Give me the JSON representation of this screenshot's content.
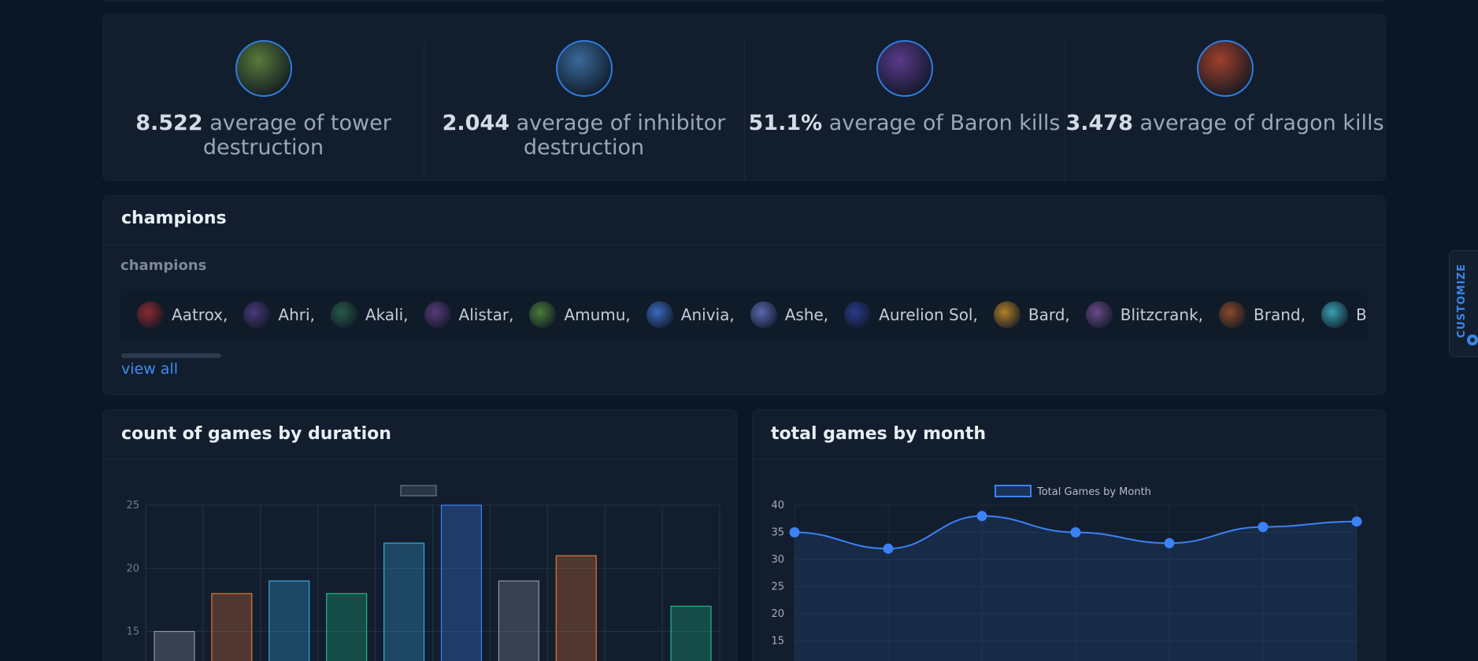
{
  "stats": [
    {
      "value": "8.522",
      "label": "average of tower destruction",
      "icon": "tower-icon",
      "color": "#5a7a3a"
    },
    {
      "value": "2.044",
      "label": "average of inhibitor destruction",
      "icon": "inhibitor-icon",
      "color": "#3a6a9a"
    },
    {
      "value": "51.1%",
      "label": "average of Baron kills",
      "icon": "baron-icon",
      "color": "#5a3a8a"
    },
    {
      "value": "3.478",
      "label": "average of dragon kills",
      "icon": "dragon-icon",
      "color": "#a0402a"
    }
  ],
  "champions": {
    "title": "champions",
    "column_label": "champions",
    "view_all": "view all",
    "items": [
      {
        "label": "Aatrox,",
        "color": "#8a2a32"
      },
      {
        "label": "Ahri,",
        "color": "#4a3a7a"
      },
      {
        "label": "Akali,",
        "color": "#2a5a4a"
      },
      {
        "label": "Alistar,",
        "color": "#5a3a7a"
      },
      {
        "label": "Amumu,",
        "color": "#4a7a3a"
      },
      {
        "label": "Anivia,",
        "color": "#3a6ac0"
      },
      {
        "label": "Ashe,",
        "color": "#5a6ab0"
      },
      {
        "label": "Aurelion Sol,",
        "color": "#2a3a8a"
      },
      {
        "label": "Bard,",
        "color": "#b0802a"
      },
      {
        "label": "Blitzcrank,",
        "color": "#6a4a8a"
      },
      {
        "label": "Brand,",
        "color": "#8a4a2a"
      },
      {
        "label": "Braum,",
        "color": "#3aa0b0"
      }
    ]
  },
  "duration_chart": {
    "title": "count of games by duration",
    "chart_data": {
      "type": "bar",
      "categories": [
        "",
        "",
        "",
        "",
        "",
        "",
        "",
        "",
        "",
        ""
      ],
      "values": [
        15,
        18,
        19,
        18,
        22,
        25,
        19,
        21,
        null,
        17
      ],
      "bar_colors": [
        "#8d96a3",
        "#e0763a",
        "#38a8e0",
        "#1fb889",
        "#38a8e0",
        "#3b82f6",
        "#8d96a3",
        "#e0763a",
        null,
        "#1fb889"
      ],
      "yticks": [
        "15",
        "20",
        "25"
      ],
      "ylim": [
        12,
        25
      ],
      "grid": true,
      "legend": "top-center"
    }
  },
  "month_chart": {
    "title": "total games by month",
    "chart_data": {
      "type": "area",
      "series": [
        {
          "name": "Total Games by Month",
          "values": [
            35,
            32,
            38,
            35,
            33,
            36,
            37
          ],
          "color": "#3b82f6"
        }
      ],
      "yticks": [
        "15",
        "20",
        "25",
        "30",
        "35",
        "40"
      ],
      "ylim": [
        12,
        40
      ],
      "grid": true,
      "legend": "top-center"
    }
  },
  "customize": {
    "label": "CUSTOMIZE"
  }
}
